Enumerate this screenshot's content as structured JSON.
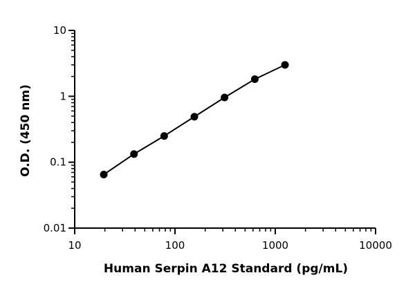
{
  "chart_data": {
    "type": "scatter",
    "title": "",
    "xlabel": "Human Serpin A12 Standard (pg/mL)",
    "ylabel": "O.D. (450 nm)",
    "xscale": "log",
    "yscale": "log",
    "xlim": [
      10,
      10000
    ],
    "ylim": [
      0.01,
      10
    ],
    "grid": false,
    "legend": "none",
    "x_tick_labels": [
      "10",
      "100",
      "1000",
      "10000"
    ],
    "y_tick_labels": [
      "0.01",
      "0.1",
      "1",
      "10"
    ],
    "x_ticks": [
      10,
      100,
      1000,
      10000
    ],
    "y_ticks": [
      0.01,
      0.1,
      1,
      10
    ],
    "series": [
      {
        "x": [
          19.5,
          39,
          78,
          156,
          312,
          625,
          1250
        ],
        "values": [
          0.065,
          0.133,
          0.25,
          0.49,
          0.96,
          1.82,
          3.0
        ],
        "fit_line": true
      }
    ],
    "colors": {
      "marker": "#000000",
      "line": "#000000",
      "axis": "#000000"
    }
  }
}
